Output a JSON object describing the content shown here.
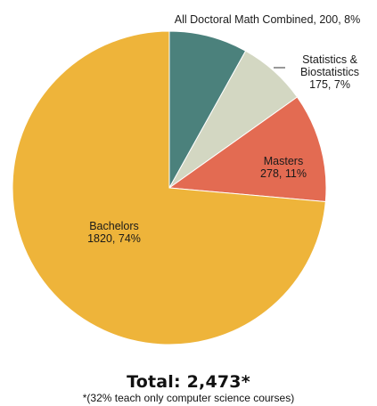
{
  "chart_data": {
    "type": "pie",
    "slices": [
      {
        "label_lines": [
          "All Doctoral Math Combined, 200, 8%"
        ],
        "name": "All Doctoral Math Combined",
        "value": 200,
        "percent": 8,
        "color": "#4b817c"
      },
      {
        "label_lines": [
          "Statistics &",
          "Biostatistics",
          "175, 7%"
        ],
        "name": "Statistics & Biostatistics",
        "value": 175,
        "percent": 7,
        "color": "#d3d7c2"
      },
      {
        "label_lines": [
          "Masters",
          "278, 11%"
        ],
        "name": "Masters",
        "value": 278,
        "percent": 11,
        "color": "#e36b52"
      },
      {
        "label_lines": [
          "Bachelors",
          "1820, 74%"
        ],
        "name": "Bachelors",
        "value": 1820,
        "percent": 74,
        "color": "#eeb43a"
      }
    ],
    "start_angle": "12 o'clock",
    "direction": "clockwise",
    "legend": "none"
  },
  "total_label": "Total: 2,473*",
  "footnote": "*(32% teach only computer science courses)"
}
